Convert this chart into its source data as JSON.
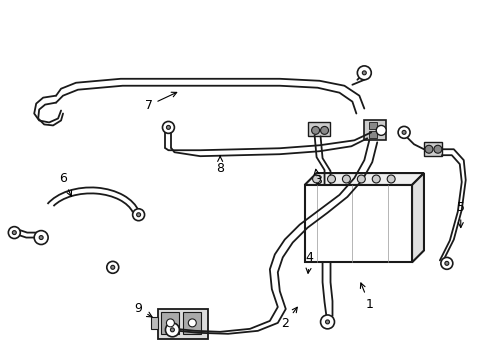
{
  "background_color": "#ffffff",
  "line_color": "#1a1a1a",
  "line_width": 1.3,
  "fig_width": 4.89,
  "fig_height": 3.6,
  "dpi": 100
}
